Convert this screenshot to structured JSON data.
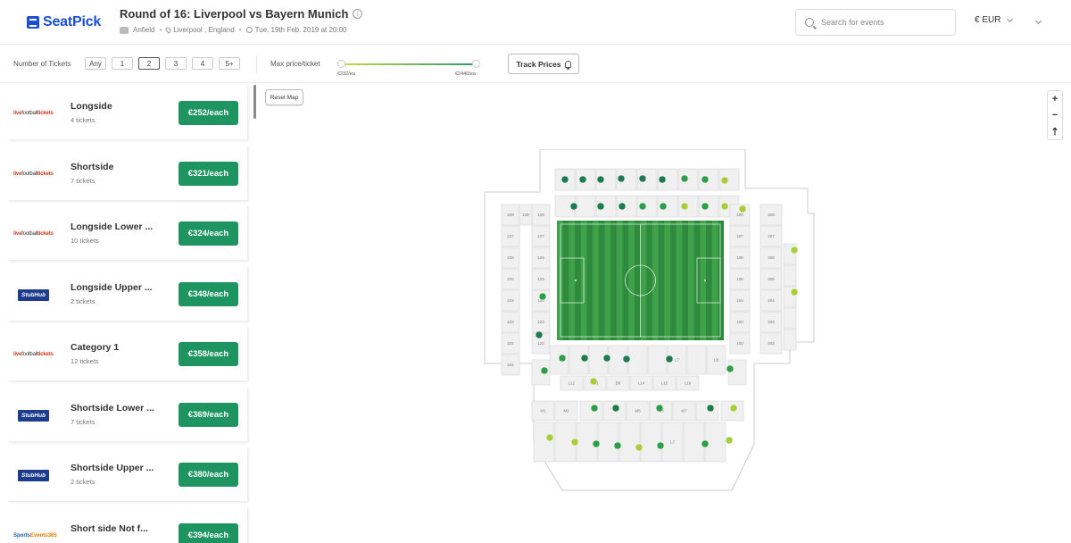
{
  "header": {
    "logo_text": "SeatPick",
    "title": "Round of 16: Liverpool vs Bayern Munich",
    "venue": "Anfield",
    "location": "Liverpool , England",
    "datetime": "Tue. 19th Feb. 2019 at 20:00",
    "search_placeholder": "Search for events",
    "currency": "€ EUR"
  },
  "filters": {
    "tickets_label": "Number of Tickets",
    "ticket_options": [
      "Any",
      "1",
      "2",
      "3",
      "4",
      "5+"
    ],
    "selected_tickets": "2",
    "price_label": "Max price/ticket",
    "price_min": "€232/ea",
    "price_max": "€2440/ea",
    "track_label": "Track Prices"
  },
  "listings": [
    {
      "vendor": "livefootballtickets",
      "name": "Longside",
      "count": "4 tickets",
      "price": "€252/each"
    },
    {
      "vendor": "livefootballtickets",
      "name": "Shortside",
      "count": "7 tickets",
      "price": "€321/each"
    },
    {
      "vendor": "livefootballtickets",
      "name": "Longside Lower ...",
      "count": "10 tickets",
      "price": "€324/each"
    },
    {
      "vendor": "StubHub",
      "name": "Longside Upper ...",
      "count": "2 tickets",
      "price": "€348/each"
    },
    {
      "vendor": "livefootballtickets",
      "name": "Category 1",
      "count": "12 tickets",
      "price": "€358/each"
    },
    {
      "vendor": "StubHub",
      "name": "Shortside Lower ...",
      "count": "7 tickets",
      "price": "€369/each"
    },
    {
      "vendor": "StubHub",
      "name": "Shortside Upper ...",
      "count": "2 tickets",
      "price": "€380/each"
    },
    {
      "vendor": "SportsEvents365",
      "name": "Short side Not f...",
      "count": "",
      "price": "€394/each"
    }
  ],
  "map": {
    "reset_label": "Reset Map",
    "zoom_in": "+",
    "zoom_out": "−",
    "compass": "⇡",
    "left_sections": [
      "228",
      "227",
      "226",
      "225",
      "224",
      "223",
      "222",
      "221"
    ],
    "left_inner_sections": [
      "128",
      "127",
      "126",
      "125",
      "124",
      "123",
      "122"
    ],
    "right_sections": [
      "208",
      "207",
      "206",
      "205",
      "204",
      "203",
      "202"
    ],
    "right_inner_sections": [
      "108",
      "107",
      "106",
      "105",
      "104",
      "103",
      "102"
    ],
    "lower_row1": [
      "L7",
      "L8"
    ],
    "lower_row2": [
      "L11",
      "L13",
      "D8",
      "L14",
      "L15",
      "L16"
    ],
    "lower_row3": [
      "M1",
      "M2",
      "M5",
      "M6",
      "M7"
    ],
    "lower_row4": [
      "L7"
    ],
    "colors": {
      "dark": "#1e7a50",
      "mid": "#2f9e4a",
      "light": "#a8cc3a",
      "pitch": "#3a9a3e"
    }
  }
}
